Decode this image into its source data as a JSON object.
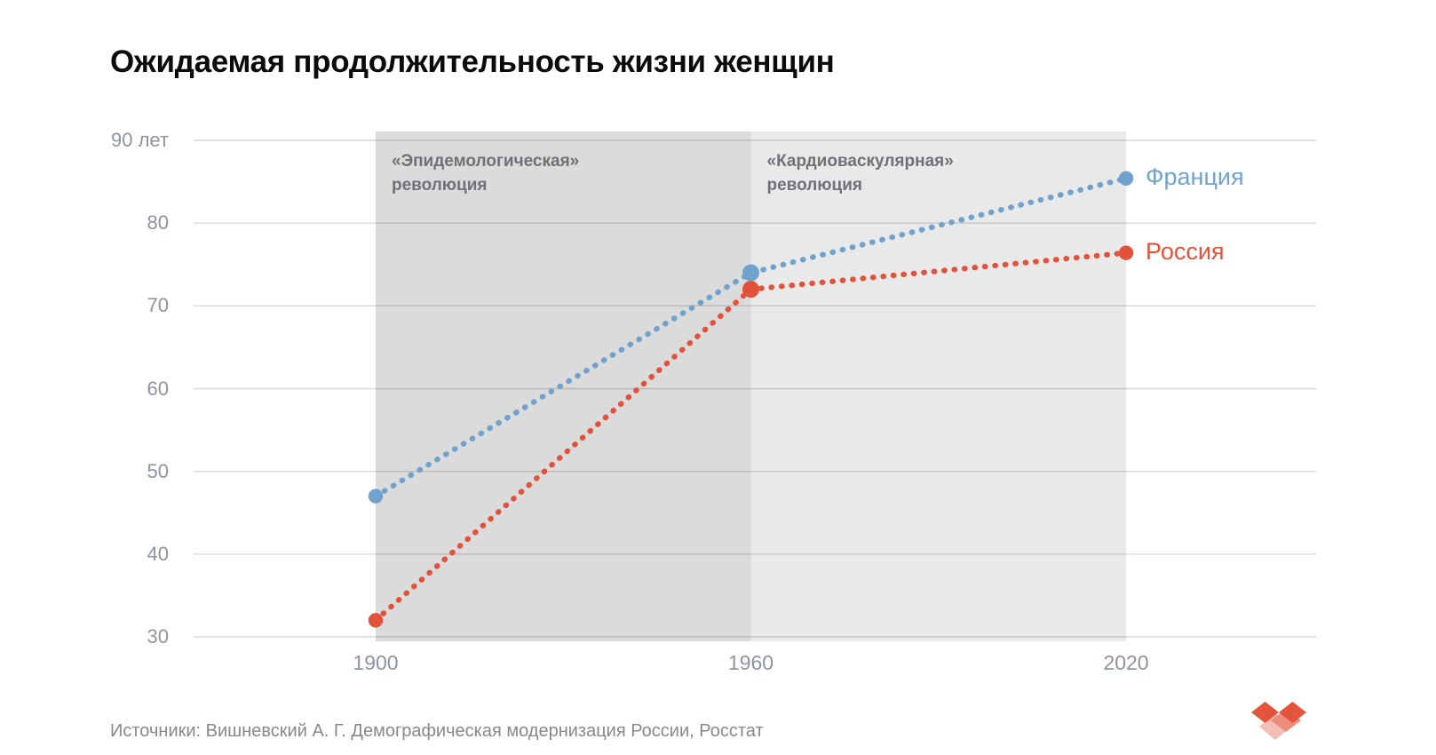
{
  "title": "Ожидаемая продолжительность жизни женщин",
  "source": "Источники: Вишневский А. Г. Демографическая модернизация России, Росстат",
  "chart_data": {
    "type": "line",
    "line_style": "dotted",
    "x": [
      1900,
      1960,
      2020
    ],
    "x_tick_labels": [
      "1900",
      "1960",
      "2020"
    ],
    "y_ticks": [
      {
        "v": 90,
        "label": "90 лет"
      },
      {
        "v": 80,
        "label": "80"
      },
      {
        "v": 70,
        "label": "70"
      },
      {
        "v": 60,
        "label": "60"
      },
      {
        "v": 50,
        "label": "50"
      },
      {
        "v": 40,
        "label": "40"
      },
      {
        "v": 30,
        "label": "30"
      }
    ],
    "ylim": [
      30,
      90
    ],
    "grid": true,
    "legend_position": "right-end-of-lines",
    "series": [
      {
        "name": "Франция",
        "color": "#6FA3CE",
        "values": [
          47,
          74,
          85.4
        ]
      },
      {
        "name": "Россия",
        "color": "#E2523A",
        "values": [
          32,
          72,
          76.4
        ]
      }
    ],
    "bands": [
      {
        "from": 1900,
        "to": 1960,
        "color": "#DBDBDB",
        "label_lines": [
          "«Эпидемологическая»",
          "революция"
        ]
      },
      {
        "from": 1960,
        "to": 2020,
        "color": "#E9E9E9",
        "label_lines": [
          "«Кардиоваскулярная»",
          "революция"
        ]
      }
    ]
  },
  "logo": {
    "name": "pixel-heart-logo",
    "colors": [
      "#E2543C",
      "#EE8D7B",
      "#F5BEB5"
    ]
  }
}
